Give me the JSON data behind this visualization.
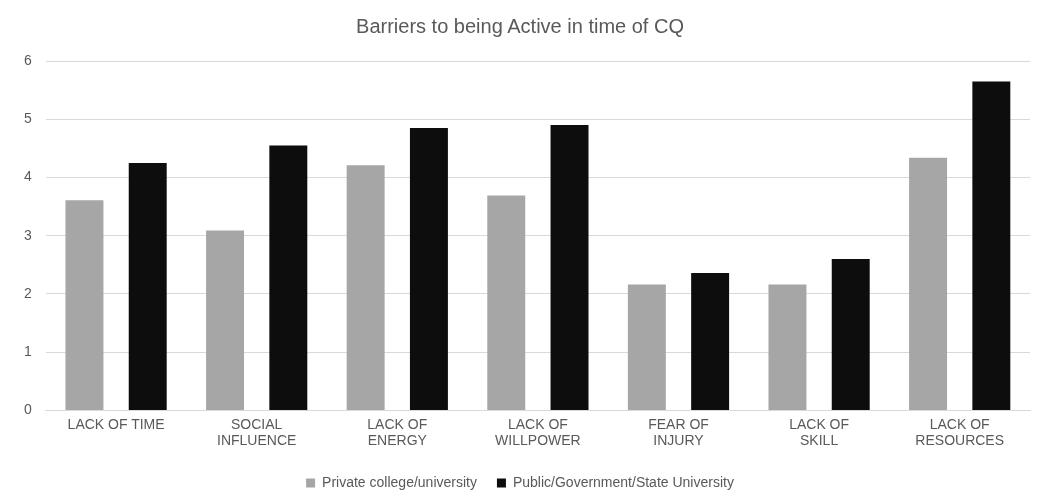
{
  "chart_data": {
    "type": "bar",
    "title": "Barriers to being Active in time of CQ",
    "categories": [
      "LACK OF TIME",
      "SOCIAL INFLUENCE",
      "LACK OF ENERGY",
      "LACK OF WILLPOWER",
      "FEAR OF INJURY",
      "LACK OF SKILL",
      "LACK OF RESOURCES"
    ],
    "series": [
      {
        "name": "Private college/university",
        "color": "#a6a6a6",
        "values": [
          3.61,
          3.09,
          4.21,
          3.69,
          2.16,
          2.16,
          4.34
        ]
      },
      {
        "name": "Public/Government/State University",
        "color": "#0d0d0d",
        "values": [
          4.25,
          4.55,
          4.85,
          4.9,
          2.36,
          2.6,
          5.65
        ]
      }
    ],
    "ylim": [
      0,
      6
    ],
    "yticks": [
      0,
      1,
      2,
      3,
      4,
      5,
      6
    ],
    "grid": "y",
    "legend": "bottom"
  }
}
